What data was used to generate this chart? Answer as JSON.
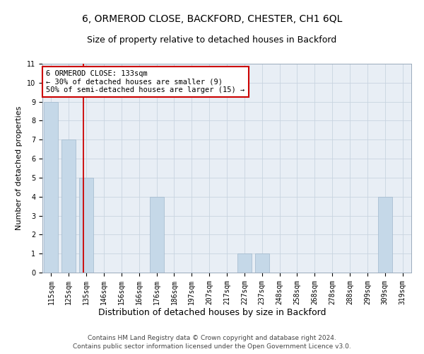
{
  "title": "6, ORMEROD CLOSE, BACKFORD, CHESTER, CH1 6QL",
  "subtitle": "Size of property relative to detached houses in Backford",
  "xlabel": "Distribution of detached houses by size in Backford",
  "ylabel": "Number of detached properties",
  "categories": [
    "115sqm",
    "125sqm",
    "135sqm",
    "146sqm",
    "156sqm",
    "166sqm",
    "176sqm",
    "186sqm",
    "197sqm",
    "207sqm",
    "217sqm",
    "227sqm",
    "237sqm",
    "248sqm",
    "258sqm",
    "268sqm",
    "278sqm",
    "288sqm",
    "299sqm",
    "309sqm",
    "319sqm"
  ],
  "values": [
    9,
    7,
    5,
    0,
    0,
    0,
    4,
    0,
    0,
    0,
    0,
    1,
    1,
    0,
    0,
    0,
    0,
    0,
    0,
    4,
    0
  ],
  "bar_color": "#c5d8e8",
  "bar_edgecolor": "#a0b8cc",
  "redline_index": 1.82,
  "ylim": [
    0,
    11
  ],
  "yticks": [
    0,
    1,
    2,
    3,
    4,
    5,
    6,
    7,
    8,
    9,
    10,
    11
  ],
  "annotation_text": "6 ORMEROD CLOSE: 133sqm\n← 30% of detached houses are smaller (9)\n50% of semi-detached houses are larger (15) →",
  "annotation_box_color": "#ffffff",
  "annotation_box_edgecolor": "#cc0000",
  "footer1": "Contains HM Land Registry data © Crown copyright and database right 2024.",
  "footer2": "Contains public sector information licensed under the Open Government Licence v3.0.",
  "grid_color": "#c8d4e0",
  "bg_color": "#e8eef5",
  "title_fontsize": 10,
  "subtitle_fontsize": 9,
  "xlabel_fontsize": 9,
  "ylabel_fontsize": 8,
  "tick_fontsize": 7,
  "annotation_fontsize": 7.5,
  "footer_fontsize": 6.5
}
